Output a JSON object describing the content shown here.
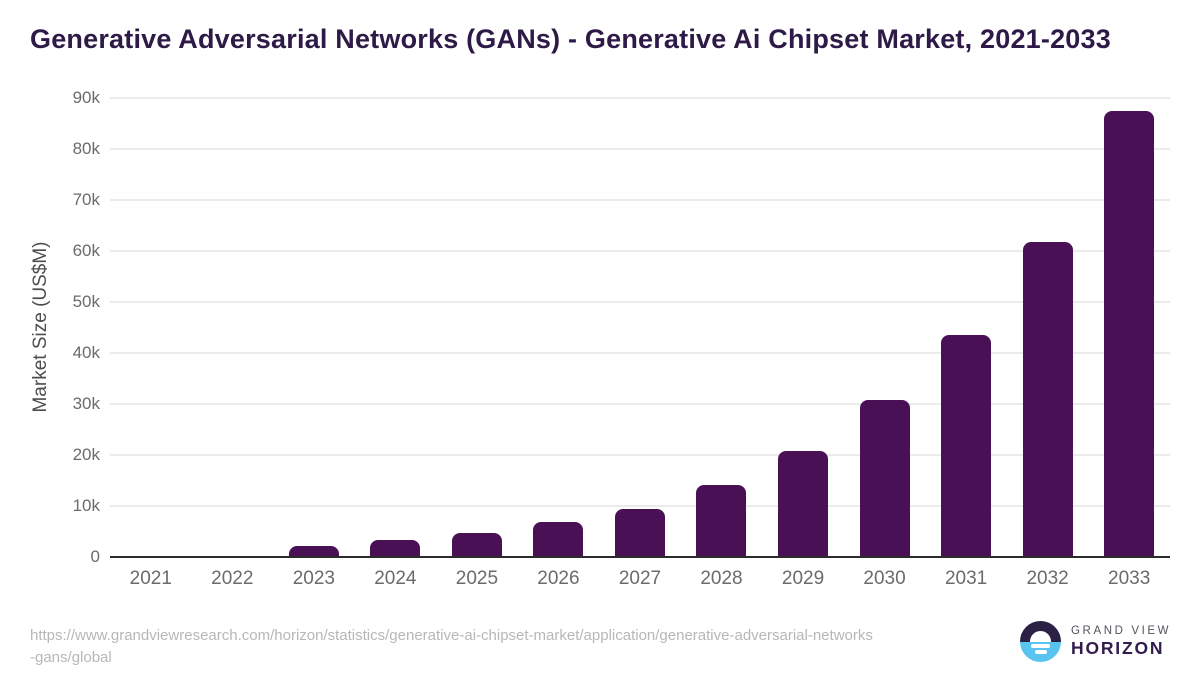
{
  "title": "Generative Adversarial Networks (GANs) - Generative Ai Chipset Market, 2021-2033",
  "chart_data": {
    "type": "bar",
    "title": "Generative Adversarial Networks (GANs) - Generative Ai Chipset Market, 2021-2033",
    "categories": [
      "2021",
      "2022",
      "2023",
      "2024",
      "2025",
      "2026",
      "2027",
      "2028",
      "2029",
      "2030",
      "2031",
      "2032",
      "2033"
    ],
    "values": [
      100,
      250,
      2200,
      3300,
      4700,
      6800,
      9500,
      14100,
      20800,
      30800,
      43600,
      61800,
      87500
    ],
    "series_name": "Market Size (US$M)",
    "xlabel": "",
    "ylabel": "Market Size (US$M)",
    "ylim": [
      0,
      90000
    ],
    "ytick_step": 10000,
    "ytick_labels": [
      "0",
      "10k",
      "20k",
      "30k",
      "40k",
      "50k",
      "60k",
      "70k",
      "80k",
      "90k"
    ],
    "grid": true,
    "legend": false,
    "bar_color": "#4a1056"
  },
  "colors": {
    "background": "#ffffff",
    "title": "#2e1a47",
    "bar": "#4a1056",
    "gridline": "#ebebeb",
    "axis_line": "#2b2b2b",
    "tick_label": "#6b6b6b",
    "axis_title": "#4d4d4d",
    "source_url": "#b7b7b7",
    "logo_dark": "#2b2144",
    "logo_blue": "#59c4f0",
    "logo_grand_view": "#55525a",
    "logo_horizon": "#321b4d"
  },
  "footer": {
    "source_url_line1": "https://www.grandviewresearch.com/horizon/statistics/generative-ai-chipset-market/application/generative-adversarial-networks",
    "source_url_line2": "-gans/global",
    "logo": {
      "icon": "horizon-sunrise-icon",
      "name_top": "GRAND VIEW",
      "name_bottom": "HORIZON"
    }
  }
}
